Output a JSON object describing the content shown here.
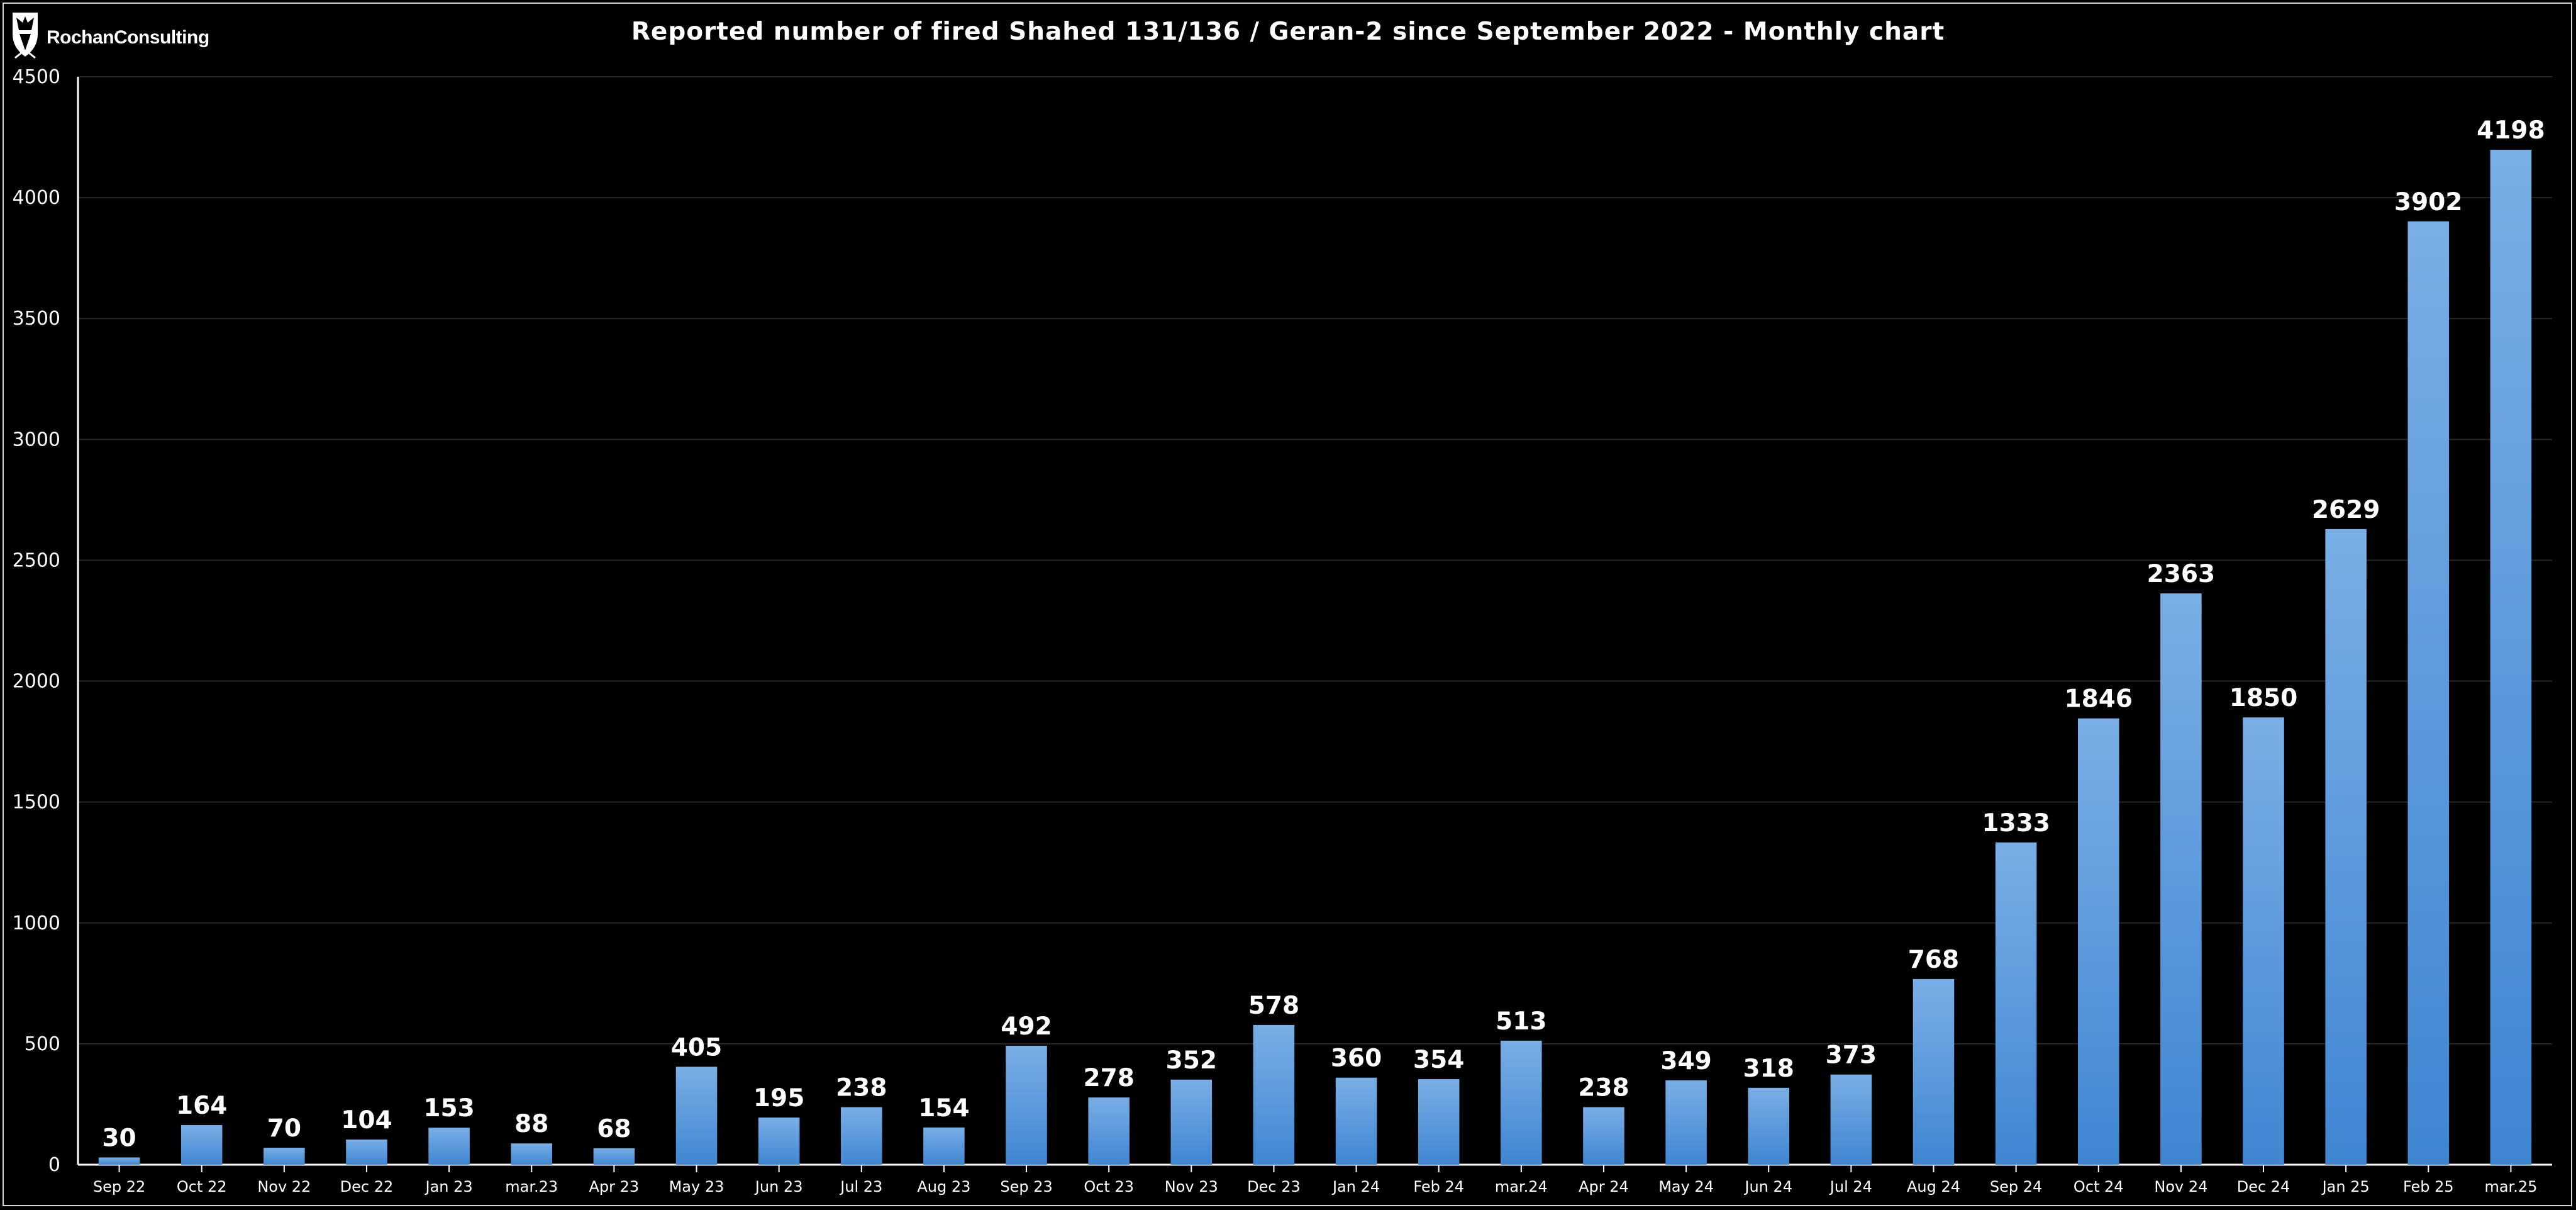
{
  "logo": {
    "text": "RochanConsulting"
  },
  "chart_data": {
    "type": "bar",
    "title": "Reported number of fired Shahed 131/136 / Geran-2 since September 2022 - Monthly chart",
    "xlabel": "",
    "ylabel": "",
    "ylim": [
      0,
      4500
    ],
    "yticks": [
      0,
      500,
      1000,
      1500,
      2000,
      2500,
      3000,
      3500,
      4000,
      4500
    ],
    "grid": true,
    "legend": "none",
    "data_labels": true,
    "colors": {
      "bar_top": "#7aaee6",
      "bar_bottom": "#3f86d2",
      "background": "#000000",
      "grid": "#262626",
      "axis": "#ffffff"
    },
    "categories": [
      "Sep 22",
      "Oct 22",
      "Nov 22",
      "Dec 22",
      "Jan 23",
      "mar.23",
      "Apr 23",
      "May 23",
      "Jun 23",
      "Jul 23",
      "Aug 23",
      "Sep 23",
      "Oct 23",
      "Nov 23",
      "Dec 23",
      "Jan 24",
      "Feb 24",
      "mar.24",
      "Apr 24",
      "May 24",
      "Jun 24",
      "Jul 24",
      "Aug 24",
      "Sep 24",
      "Oct 24",
      "Nov 24",
      "Dec 24",
      "Jan 25",
      "Feb 25",
      "mar.25"
    ],
    "values": [
      30,
      164,
      70,
      104,
      153,
      88,
      68,
      405,
      195,
      238,
      154,
      492,
      278,
      352,
      578,
      360,
      354,
      513,
      238,
      349,
      318,
      373,
      768,
      1333,
      1846,
      2363,
      1850,
      2629,
      3902,
      4198
    ]
  }
}
